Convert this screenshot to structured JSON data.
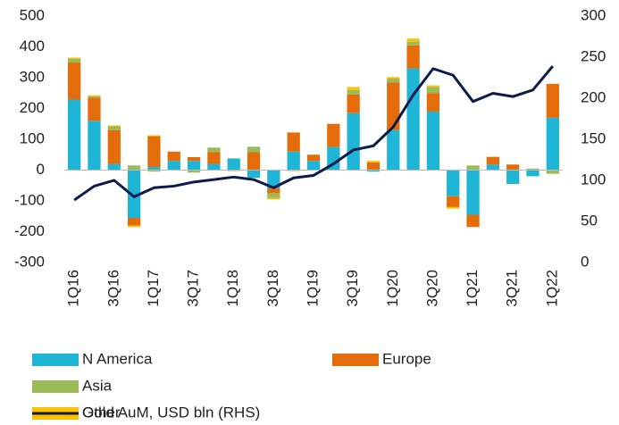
{
  "chart_data": {
    "type": "bar",
    "categories": [
      "1Q16",
      null,
      "3Q16",
      null,
      "1Q17",
      null,
      "3Q17",
      null,
      "1Q18",
      null,
      "3Q18",
      null,
      "1Q19",
      null,
      "3Q19",
      null,
      "1Q20",
      null,
      "3Q20",
      null,
      "1Q21",
      null,
      "3Q21",
      null,
      "1Q22"
    ],
    "series": [
      {
        "name": "N America",
        "color": "#1fb5d6",
        "values": [
          229,
          160,
          20,
          -155,
          10,
          30,
          30,
          20,
          38,
          -25,
          -60,
          60,
          30,
          75,
          185,
          -5,
          130,
          330,
          190,
          -85,
          -145,
          18,
          -45,
          -20,
          170
        ]
      },
      {
        "name": "Europe",
        "color": "#e46c0a",
        "values": [
          120,
          75,
          110,
          -25,
          100,
          30,
          12,
          38,
          0,
          58,
          -15,
          62,
          20,
          75,
          60,
          25,
          155,
          75,
          60,
          -35,
          -40,
          25,
          18,
          0,
          110
        ]
      },
      {
        "name": "Asia",
        "color": "#9bbb59",
        "values": [
          12,
          5,
          12,
          15,
          -5,
          0,
          -8,
          15,
          -3,
          18,
          -15,
          -3,
          0,
          0,
          15,
          0,
          12,
          12,
          20,
          0,
          15,
          0,
          0,
          5,
          -12
        ]
      },
      {
        "name": "Other",
        "color": "#ffc000",
        "values": [
          4,
          3,
          3,
          -5,
          3,
          0,
          0,
          0,
          0,
          0,
          -5,
          0,
          0,
          0,
          10,
          5,
          5,
          10,
          5,
          -5,
          0,
          0,
          0,
          0,
          0
        ]
      },
      {
        "name": "Gold AuM, USD bln (RHS)",
        "color": "#0d1b4c",
        "axis": "y2",
        "type": "line",
        "values": [
          76,
          93,
          100,
          80,
          91,
          93,
          98,
          101,
          104,
          101,
          91,
          103,
          106,
          120,
          137,
          142,
          165,
          204,
          236,
          228,
          196,
          206,
          202,
          210,
          239
        ]
      }
    ],
    "ylim": [
      -300,
      500
    ],
    "yticks": [
      -300,
      -200,
      -100,
      0,
      100,
      200,
      300,
      400,
      500
    ],
    "y2lim": [
      0,
      300
    ],
    "y2ticks": [
      0,
      50,
      100,
      150,
      200,
      250,
      300
    ],
    "stacked": true,
    "grid": false,
    "legend": "bottom"
  }
}
